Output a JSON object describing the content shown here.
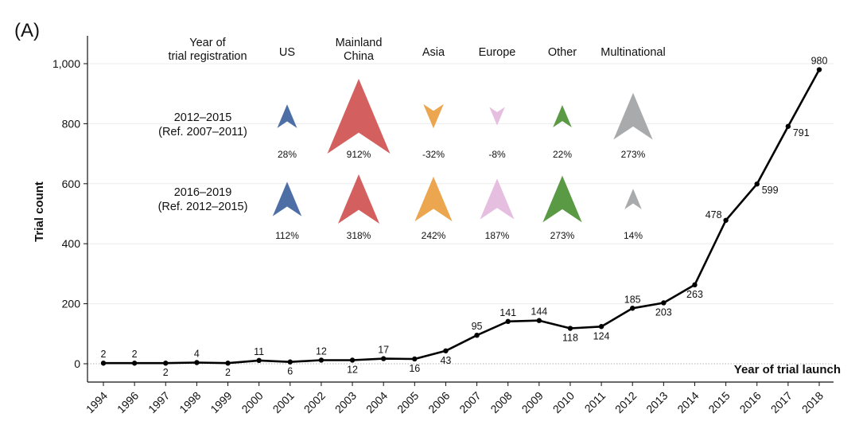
{
  "panel_label": "(A)",
  "chart_data": {
    "type": "line",
    "xlabel": "Year of trial launch",
    "ylabel": "Trial count",
    "ylim": [
      -50,
      1080
    ],
    "yticks": [
      0,
      200,
      400,
      600,
      800,
      1000
    ],
    "ytick_labels": [
      "0",
      "200",
      "400",
      "600",
      "800",
      "1,000"
    ],
    "grid": "horizontal",
    "categories": [
      "1994",
      "1996",
      "1997",
      "1998",
      "1999",
      "2000",
      "2001",
      "2002",
      "2003",
      "2004",
      "2005",
      "2006",
      "2007",
      "2008",
      "2009",
      "2010",
      "2011",
      "2012",
      "2013",
      "2014",
      "2015",
      "2016",
      "2017",
      "2018"
    ],
    "values": [
      2,
      2,
      2,
      4,
      2,
      11,
      6,
      12,
      12,
      17,
      16,
      43,
      95,
      141,
      144,
      118,
      124,
      185,
      203,
      263,
      478,
      599,
      791,
      980
    ],
    "value_labels": [
      "2",
      "2",
      "2",
      "4",
      "2",
      "11",
      "6",
      "12",
      "12",
      "17",
      "16",
      "43",
      "95",
      "141",
      "144",
      "118",
      "124",
      "185",
      "203",
      "263",
      "478",
      "599",
      "791",
      "980"
    ],
    "line_color": "#000000",
    "inset": {
      "row_header": [
        "Year of",
        "trial registration"
      ],
      "columns": [
        {
          "lines": [
            "US"
          ],
          "color": "#4d6fa6"
        },
        {
          "lines": [
            "Mainland",
            "China"
          ],
          "color": "#d45f5f"
        },
        {
          "lines": [
            "Asia"
          ],
          "color": "#eba64f"
        },
        {
          "lines": [
            "Europe"
          ],
          "color": "#e6bee0"
        },
        {
          "lines": [
            "Other"
          ],
          "color": "#5b9a45"
        },
        {
          "lines": [
            "Multinational"
          ],
          "color": "#a8aaab"
        }
      ],
      "rows": [
        {
          "label": [
            "2012–2015",
            "(Ref. 2007–2011)"
          ],
          "values": [
            28,
            912,
            -32,
            -8,
            22,
            273
          ],
          "labels": [
            "28%",
            "912%",
            "-32%",
            "-8%",
            "22%",
            "273%"
          ]
        },
        {
          "label": [
            "2016–2019",
            "(Ref. 2012–2015)"
          ],
          "values": [
            112,
            318,
            242,
            187,
            273,
            14
          ],
          "labels": [
            "112%",
            "318%",
            "242%",
            "187%",
            "273%",
            "14%"
          ]
        }
      ]
    }
  }
}
